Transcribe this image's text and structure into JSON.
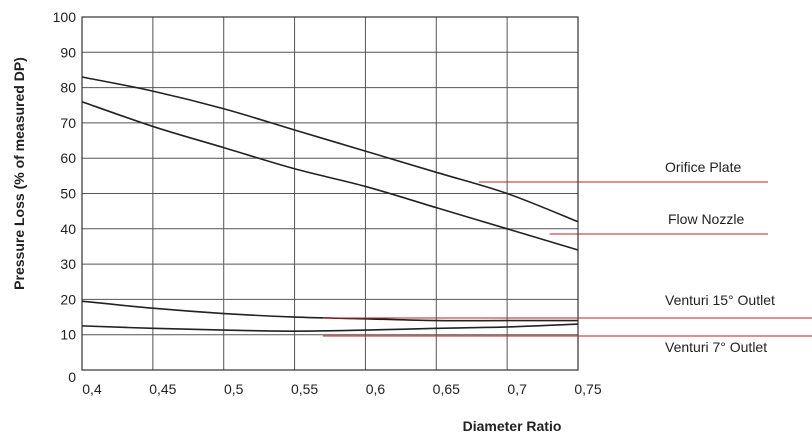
{
  "chart_data": {
    "type": "line",
    "xlabel": "Diameter Ratio",
    "ylabel": "Pressure Loss (% of measured DP)",
    "xlim": [
      0.4,
      0.75
    ],
    "ylim": [
      0,
      100
    ],
    "x_ticks": [
      0.4,
      0.45,
      0.5,
      0.55,
      0.6,
      0.65,
      0.7,
      0.75
    ],
    "x_tick_labels": [
      "0,4",
      "0,45",
      "0,5",
      "0,55",
      "0,6",
      "0,65",
      "0,7",
      "0,75"
    ],
    "y_ticks": [
      0,
      10,
      20,
      30,
      40,
      50,
      60,
      70,
      80,
      90,
      100
    ],
    "y_tick_labels": [
      "0",
      "10",
      "20",
      "30",
      "40",
      "50",
      "60",
      "70",
      "80",
      "90",
      "100"
    ],
    "grid": true,
    "line_color": "#222222",
    "callout_color": "#c0202a",
    "series": [
      {
        "name": "Orifice Plate",
        "x": [
          0.4,
          0.45,
          0.5,
          0.55,
          0.6,
          0.65,
          0.7,
          0.75
        ],
        "values": [
          83,
          79,
          74,
          68,
          62,
          56,
          50,
          42
        ],
        "callout_anchor": [
          0.68,
          52
        ]
      },
      {
        "name": "Flow Nozzle",
        "x": [
          0.4,
          0.45,
          0.5,
          0.55,
          0.6,
          0.65,
          0.7,
          0.75
        ],
        "values": [
          76,
          69,
          63,
          57,
          52,
          46,
          40,
          34
        ],
        "callout_anchor": [
          0.73,
          38
        ]
      },
      {
        "name": "Venturi 15° Outlet",
        "x": [
          0.4,
          0.45,
          0.5,
          0.55,
          0.6,
          0.65,
          0.7,
          0.75
        ],
        "values": [
          19.5,
          17.5,
          16,
          15,
          14.5,
          14,
          14,
          14
        ],
        "callout_anchor": [
          0.57,
          15.5
        ]
      },
      {
        "name": "Venturi 7° Outlet",
        "x": [
          0.4,
          0.45,
          0.5,
          0.55,
          0.6,
          0.65,
          0.7,
          0.75
        ],
        "values": [
          12.5,
          11.8,
          11.3,
          11,
          11.3,
          11.8,
          12.2,
          13
        ],
        "callout_anchor": [
          0.57,
          11
        ]
      }
    ]
  }
}
